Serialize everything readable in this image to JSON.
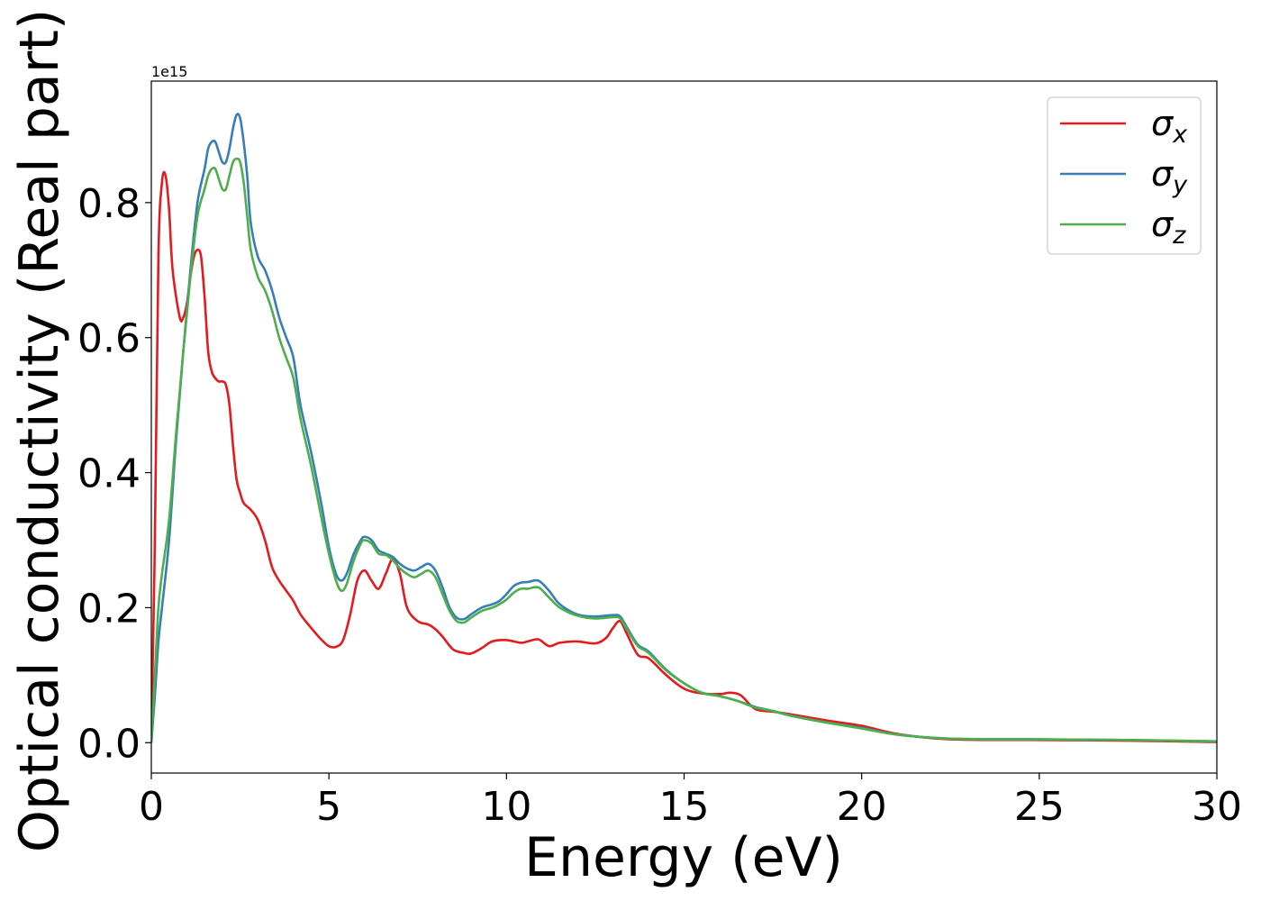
{
  "chart_data": {
    "type": "line",
    "title": "",
    "xlabel": "Energy (eV)",
    "ylabel": "Optical conductivity (Real part)",
    "y_offset_text": "1e15",
    "xlim": [
      0,
      30
    ],
    "ylim": [
      -0.045,
      0.98
    ],
    "xticks": [
      0,
      5,
      10,
      15,
      20,
      25,
      30
    ],
    "xtick_labels": [
      "0",
      "5",
      "10",
      "15",
      "20",
      "25",
      "30"
    ],
    "yticks": [
      0.0,
      0.2,
      0.4,
      0.6,
      0.8
    ],
    "ytick_labels": [
      "0.0",
      "0.2",
      "0.4",
      "0.6",
      "0.8"
    ],
    "grid": false,
    "legend_position": "top-right",
    "series": [
      {
        "name": "σ",
        "subscript": "x",
        "color": "#e41a1c",
        "x": [
          0,
          0.1,
          0.2,
          0.3,
          0.4,
          0.5,
          0.6,
          0.8,
          0.9,
          1.0,
          1.1,
          1.2,
          1.3,
          1.4,
          1.5,
          1.6,
          1.7,
          1.8,
          1.9,
          2.0,
          2.1,
          2.2,
          2.3,
          2.4,
          2.5,
          2.6,
          2.8,
          3.0,
          3.2,
          3.4,
          3.6,
          3.8,
          4.0,
          4.2,
          4.5,
          4.8,
          5.0,
          5.2,
          5.4,
          5.6,
          5.8,
          6.0,
          6.2,
          6.4,
          6.6,
          6.8,
          7.0,
          7.2,
          7.5,
          7.8,
          8.0,
          8.2,
          8.5,
          8.8,
          9.0,
          9.3,
          9.6,
          10.0,
          10.4,
          10.6,
          10.9,
          11.2,
          11.5,
          12.0,
          12.5,
          12.8,
          13.0,
          13.2,
          13.4,
          13.7,
          14.0,
          14.5,
          15.0,
          15.5,
          16.0,
          16.3,
          16.6,
          17.0,
          17.5,
          18.0,
          19.0,
          20.0,
          21.0,
          22.5,
          25.0,
          27.5,
          30.0
        ],
        "values": [
          0.0,
          0.3,
          0.72,
          0.83,
          0.84,
          0.79,
          0.7,
          0.63,
          0.63,
          0.65,
          0.69,
          0.72,
          0.73,
          0.72,
          0.66,
          0.58,
          0.55,
          0.54,
          0.535,
          0.535,
          0.53,
          0.5,
          0.44,
          0.39,
          0.37,
          0.355,
          0.345,
          0.33,
          0.3,
          0.26,
          0.24,
          0.225,
          0.21,
          0.19,
          0.17,
          0.152,
          0.143,
          0.142,
          0.152,
          0.19,
          0.24,
          0.255,
          0.24,
          0.228,
          0.25,
          0.272,
          0.25,
          0.2,
          0.18,
          0.175,
          0.168,
          0.157,
          0.138,
          0.133,
          0.132,
          0.14,
          0.15,
          0.152,
          0.148,
          0.15,
          0.153,
          0.143,
          0.148,
          0.15,
          0.147,
          0.155,
          0.17,
          0.18,
          0.16,
          0.13,
          0.125,
          0.1,
          0.08,
          0.073,
          0.072,
          0.074,
          0.07,
          0.05,
          0.046,
          0.042,
          0.033,
          0.025,
          0.013,
          0.005,
          0.004,
          0.003,
          0.001
        ]
      },
      {
        "name": "σ",
        "subscript": "y",
        "color": "#377eb8",
        "x": [
          0,
          0.1,
          0.2,
          0.3,
          0.5,
          0.7,
          0.9,
          1.1,
          1.3,
          1.5,
          1.6,
          1.7,
          1.8,
          1.9,
          2.0,
          2.1,
          2.2,
          2.3,
          2.4,
          2.5,
          2.6,
          2.7,
          2.8,
          3.0,
          3.2,
          3.4,
          3.6,
          3.8,
          4.0,
          4.2,
          4.5,
          4.8,
          5.0,
          5.2,
          5.35,
          5.5,
          5.7,
          5.9,
          6.0,
          6.2,
          6.4,
          6.6,
          6.8,
          7.0,
          7.2,
          7.4,
          7.6,
          7.8,
          8.0,
          8.2,
          8.4,
          8.6,
          8.8,
          9.0,
          9.3,
          9.6,
          9.8,
          10.0,
          10.2,
          10.4,
          10.6,
          10.9,
          11.2,
          11.5,
          12.0,
          12.5,
          13.0,
          13.2,
          13.4,
          13.7,
          14.0,
          14.5,
          15.0,
          15.5,
          16.0,
          16.5,
          17.0,
          17.5,
          18.0,
          19.0,
          20.0,
          21.0,
          22.5,
          25.0,
          27.5,
          30.0
        ],
        "values": [
          0.0,
          0.07,
          0.15,
          0.2,
          0.3,
          0.45,
          0.58,
          0.7,
          0.8,
          0.85,
          0.88,
          0.89,
          0.89,
          0.875,
          0.86,
          0.86,
          0.88,
          0.91,
          0.93,
          0.925,
          0.89,
          0.84,
          0.77,
          0.72,
          0.7,
          0.67,
          0.63,
          0.6,
          0.57,
          0.5,
          0.43,
          0.35,
          0.29,
          0.25,
          0.24,
          0.25,
          0.28,
          0.3,
          0.305,
          0.3,
          0.285,
          0.28,
          0.275,
          0.265,
          0.258,
          0.255,
          0.26,
          0.265,
          0.255,
          0.23,
          0.2,
          0.185,
          0.183,
          0.19,
          0.2,
          0.205,
          0.21,
          0.22,
          0.232,
          0.237,
          0.238,
          0.24,
          0.225,
          0.205,
          0.19,
          0.187,
          0.189,
          0.187,
          0.17,
          0.145,
          0.135,
          0.108,
          0.088,
          0.074,
          0.069,
          0.062,
          0.053,
          0.047,
          0.04,
          0.03,
          0.022,
          0.012,
          0.006,
          0.005,
          0.004,
          0.002
        ]
      },
      {
        "name": "σ",
        "subscript": "z",
        "color": "#4daf4a",
        "x": [
          0,
          0.1,
          0.2,
          0.3,
          0.5,
          0.7,
          0.9,
          1.1,
          1.3,
          1.5,
          1.6,
          1.7,
          1.8,
          1.9,
          2.0,
          2.1,
          2.2,
          2.3,
          2.4,
          2.5,
          2.6,
          2.7,
          2.8,
          3.0,
          3.2,
          3.4,
          3.6,
          3.8,
          4.0,
          4.2,
          4.5,
          4.8,
          5.0,
          5.2,
          5.35,
          5.5,
          5.7,
          5.9,
          6.0,
          6.2,
          6.4,
          6.6,
          6.8,
          7.0,
          7.2,
          7.4,
          7.6,
          7.8,
          8.0,
          8.2,
          8.4,
          8.6,
          8.8,
          9.0,
          9.3,
          9.6,
          9.8,
          10.0,
          10.2,
          10.4,
          10.6,
          10.9,
          11.2,
          11.5,
          12.0,
          12.5,
          13.0,
          13.2,
          13.4,
          13.7,
          14.0,
          14.5,
          15.0,
          15.5,
          16.0,
          16.5,
          17.0,
          17.5,
          18.0,
          19.0,
          20.0,
          21.0,
          22.5,
          25.0,
          27.5,
          30.0
        ],
        "values": [
          0.0,
          0.1,
          0.2,
          0.25,
          0.33,
          0.46,
          0.58,
          0.69,
          0.78,
          0.82,
          0.84,
          0.85,
          0.85,
          0.835,
          0.82,
          0.82,
          0.84,
          0.86,
          0.865,
          0.86,
          0.83,
          0.78,
          0.73,
          0.69,
          0.67,
          0.64,
          0.6,
          0.57,
          0.54,
          0.48,
          0.41,
          0.33,
          0.28,
          0.24,
          0.225,
          0.235,
          0.27,
          0.295,
          0.3,
          0.295,
          0.28,
          0.278,
          0.27,
          0.258,
          0.25,
          0.245,
          0.25,
          0.255,
          0.245,
          0.22,
          0.195,
          0.18,
          0.178,
          0.185,
          0.195,
          0.2,
          0.205,
          0.212,
          0.222,
          0.228,
          0.228,
          0.23,
          0.215,
          0.2,
          0.188,
          0.184,
          0.186,
          0.184,
          0.167,
          0.143,
          0.133,
          0.107,
          0.088,
          0.074,
          0.069,
          0.062,
          0.052,
          0.047,
          0.04,
          0.03,
          0.021,
          0.012,
          0.006,
          0.005,
          0.004,
          0.002
        ]
      }
    ]
  }
}
